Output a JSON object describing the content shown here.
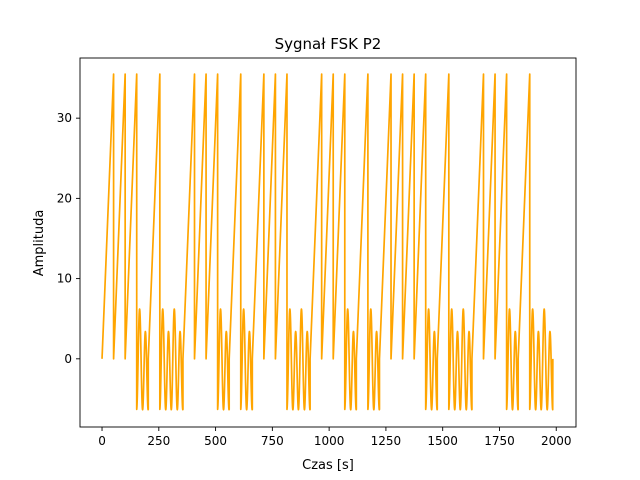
{
  "chart_data": {
    "type": "line",
    "title": "Sygnał FSK P2",
    "xlabel": "Czas [s]",
    "ylabel": "Amplituda",
    "xlim": [
      -97,
      2087
    ],
    "ylim": [
      -8.5,
      37.5
    ],
    "xticks": [
      0,
      250,
      500,
      750,
      1000,
      1250,
      1500,
      1750,
      2000
    ],
    "yticks": [
      0,
      10,
      20,
      30
    ],
    "grid": false,
    "line_color": "#FFA500",
    "bits": [
      1,
      1,
      1,
      0,
      1,
      0,
      0,
      1,
      1,
      1,
      0,
      1,
      0,
      1,
      1,
      1,
      0,
      0,
      1,
      1,
      1,
      0,
      1,
      0,
      1,
      1,
      1,
      1,
      0,
      1,
      0,
      0,
      1,
      1,
      1,
      0,
      1,
      0,
      0
    ],
    "bit_duration": 50.9,
    "bit1_peak": 35.5,
    "bit0_max": 4.8,
    "bit0_min": -6.3,
    "x_end": 1985
  }
}
